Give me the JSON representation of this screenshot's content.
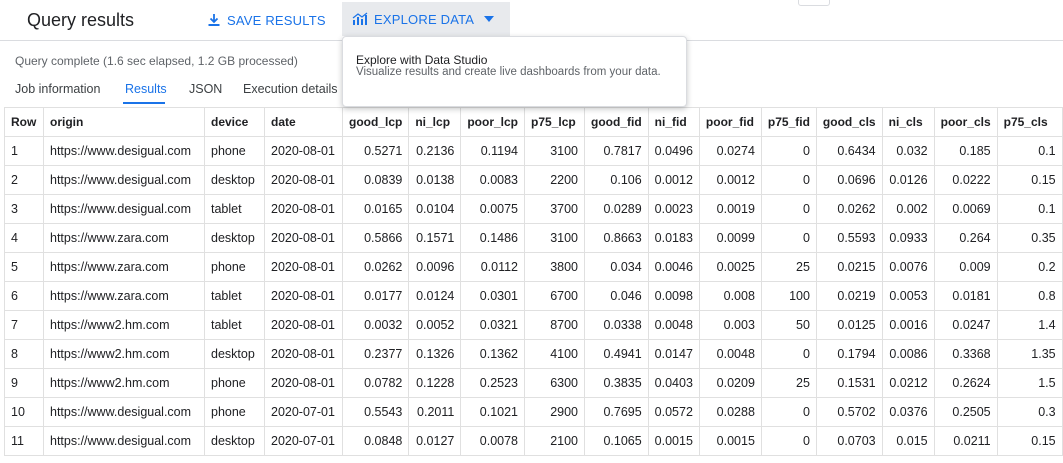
{
  "header": {
    "title": "Query results",
    "save_label": "SAVE RESULTS",
    "explore_label": "EXPLORE DATA"
  },
  "status": "Query complete (1.6 sec elapsed, 1.2 GB processed)",
  "tabs": [
    {
      "label": "Job information"
    },
    {
      "label": "Results",
      "active": true
    },
    {
      "label": "JSON"
    },
    {
      "label": "Execution details"
    }
  ],
  "popup": {
    "title": "Explore with Data Studio",
    "subtitle": "Visualize results and create live dashboards from your data."
  },
  "colors": {
    "accent": "#1a73e8",
    "border": "#e0e0e0",
    "muted": "#5f6368"
  },
  "icons": {
    "save": "download-icon",
    "explore": "chart-icon",
    "dropdown": "caret-down-icon"
  },
  "table": {
    "columns": [
      "Row",
      "origin",
      "device",
      "date",
      "good_lcp",
      "ni_lcp",
      "poor_lcp",
      "p75_lcp",
      "good_fid",
      "ni_fid",
      "poor_fid",
      "p75_fid",
      "good_cls",
      "ni_cls",
      "poor_cls",
      "p75_cls"
    ],
    "rows": [
      [
        "1",
        "https://www.desigual.com",
        "phone",
        "2020-08-01",
        "0.5271",
        "0.2136",
        "0.1194",
        "3100",
        "0.7817",
        "0.0496",
        "0.0274",
        "0",
        "0.6434",
        "0.032",
        "0.185",
        "0.1"
      ],
      [
        "2",
        "https://www.desigual.com",
        "desktop",
        "2020-08-01",
        "0.0839",
        "0.0138",
        "0.0083",
        "2200",
        "0.106",
        "0.0012",
        "0.0012",
        "0",
        "0.0696",
        "0.0126",
        "0.0222",
        "0.15"
      ],
      [
        "3",
        "https://www.desigual.com",
        "tablet",
        "2020-08-01",
        "0.0165",
        "0.0104",
        "0.0075",
        "3700",
        "0.0289",
        "0.0023",
        "0.0019",
        "0",
        "0.0262",
        "0.002",
        "0.0069",
        "0.1"
      ],
      [
        "4",
        "https://www.zara.com",
        "desktop",
        "2020-08-01",
        "0.5866",
        "0.1571",
        "0.1486",
        "3100",
        "0.8663",
        "0.0183",
        "0.0099",
        "0",
        "0.5593",
        "0.0933",
        "0.264",
        "0.35"
      ],
      [
        "5",
        "https://www.zara.com",
        "phone",
        "2020-08-01",
        "0.0262",
        "0.0096",
        "0.0112",
        "3800",
        "0.034",
        "0.0046",
        "0.0025",
        "25",
        "0.0215",
        "0.0076",
        "0.009",
        "0.2"
      ],
      [
        "6",
        "https://www.zara.com",
        "tablet",
        "2020-08-01",
        "0.0177",
        "0.0124",
        "0.0301",
        "6700",
        "0.046",
        "0.0098",
        "0.008",
        "100",
        "0.0219",
        "0.0053",
        "0.0181",
        "0.8"
      ],
      [
        "7",
        "https://www2.hm.com",
        "tablet",
        "2020-08-01",
        "0.0032",
        "0.0052",
        "0.0321",
        "8700",
        "0.0338",
        "0.0048",
        "0.003",
        "50",
        "0.0125",
        "0.0016",
        "0.0247",
        "1.4"
      ],
      [
        "8",
        "https://www2.hm.com",
        "desktop",
        "2020-08-01",
        "0.2377",
        "0.1326",
        "0.1362",
        "4100",
        "0.4941",
        "0.0147",
        "0.0048",
        "0",
        "0.1794",
        "0.0086",
        "0.3368",
        "1.35"
      ],
      [
        "9",
        "https://www2.hm.com",
        "phone",
        "2020-08-01",
        "0.0782",
        "0.1228",
        "0.2523",
        "6300",
        "0.3835",
        "0.0403",
        "0.0209",
        "25",
        "0.1531",
        "0.0212",
        "0.2624",
        "1.5"
      ],
      [
        "10",
        "https://www.desigual.com",
        "phone",
        "2020-07-01",
        "0.5543",
        "0.2011",
        "0.1021",
        "2900",
        "0.7695",
        "0.0572",
        "0.0288",
        "0",
        "0.5702",
        "0.0376",
        "0.2505",
        "0.3"
      ],
      [
        "11",
        "https://www.desigual.com",
        "desktop",
        "2020-07-01",
        "0.0848",
        "0.0127",
        "0.0078",
        "2100",
        "0.1065",
        "0.0015",
        "0.0015",
        "0",
        "0.0703",
        "0.015",
        "0.0211",
        "0.15"
      ]
    ]
  }
}
